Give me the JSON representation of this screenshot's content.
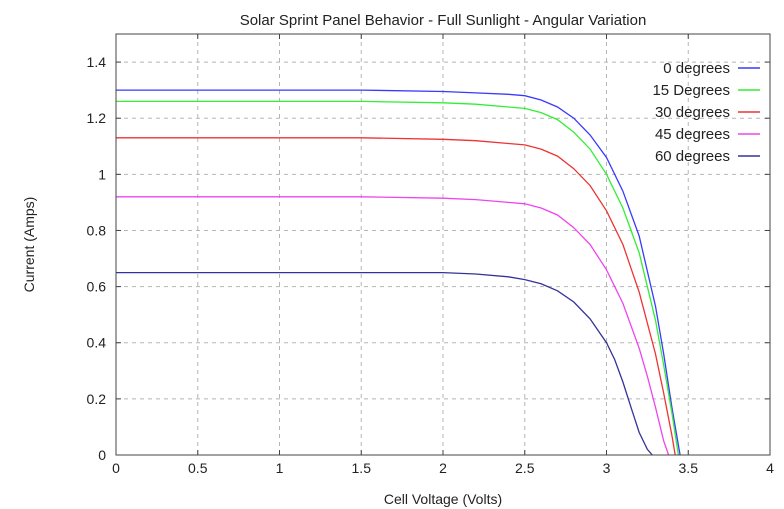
{
  "chart_data": {
    "type": "line",
    "title": "Solar Sprint Panel Behavior - Full Sunlight - Angular Variation",
    "xlabel": "Cell Voltage (Volts)",
    "ylabel": "Current (Amps)",
    "xlim": [
      0,
      4
    ],
    "ylim": [
      0,
      1.5
    ],
    "xticks": [
      0,
      0.5,
      1,
      1.5,
      2,
      2.5,
      3,
      3.5,
      4
    ],
    "xtick_labels": [
      "0",
      "0.5",
      "1",
      "1.5",
      "2",
      "2.5",
      "3",
      "3.5",
      "4"
    ],
    "yticks": [
      0,
      0.2,
      0.4,
      0.6,
      0.8,
      1,
      1.2,
      1.4
    ],
    "ytick_labels": [
      "0",
      "0.2",
      "0.4",
      "0.6",
      "0.8",
      "1",
      "1.2",
      "1.4"
    ],
    "grid": true,
    "legend_position": "top-right",
    "series": [
      {
        "name": "0 degrees",
        "color": "#3a3aff",
        "x": [
          0,
          1.0,
          1.5,
          2.0,
          2.2,
          2.4,
          2.5,
          2.6,
          2.7,
          2.8,
          2.9,
          3.0,
          3.1,
          3.2,
          3.3,
          3.35,
          3.4,
          3.45
        ],
        "y": [
          1.3,
          1.3,
          1.3,
          1.295,
          1.29,
          1.285,
          1.28,
          1.265,
          1.24,
          1.2,
          1.14,
          1.06,
          0.94,
          0.78,
          0.53,
          0.36,
          0.17,
          0.0
        ]
      },
      {
        "name": "15 Degrees",
        "color": "#33ee33",
        "x": [
          0,
          1.0,
          1.5,
          2.0,
          2.2,
          2.4,
          2.5,
          2.6,
          2.7,
          2.8,
          2.9,
          3.0,
          3.1,
          3.2,
          3.3,
          3.35,
          3.4,
          3.44
        ],
        "y": [
          1.26,
          1.26,
          1.26,
          1.255,
          1.25,
          1.24,
          1.235,
          1.22,
          1.195,
          1.15,
          1.09,
          1.0,
          0.88,
          0.72,
          0.48,
          0.32,
          0.15,
          0.0
        ]
      },
      {
        "name": "30 degrees",
        "color": "#ee3333",
        "x": [
          0,
          1.0,
          1.5,
          2.0,
          2.2,
          2.4,
          2.5,
          2.6,
          2.7,
          2.8,
          2.9,
          3.0,
          3.1,
          3.2,
          3.3,
          3.35,
          3.4,
          3.42
        ],
        "y": [
          1.13,
          1.13,
          1.13,
          1.125,
          1.12,
          1.11,
          1.105,
          1.09,
          1.065,
          1.02,
          0.96,
          0.87,
          0.75,
          0.58,
          0.36,
          0.22,
          0.07,
          0.0
        ]
      },
      {
        "name": "45 degrees",
        "color": "#ee44ee",
        "x": [
          0,
          1.0,
          1.5,
          2.0,
          2.2,
          2.4,
          2.5,
          2.6,
          2.7,
          2.8,
          2.9,
          3.0,
          3.1,
          3.2,
          3.25,
          3.3,
          3.35,
          3.38
        ],
        "y": [
          0.92,
          0.92,
          0.92,
          0.915,
          0.91,
          0.9,
          0.895,
          0.88,
          0.855,
          0.81,
          0.75,
          0.66,
          0.54,
          0.38,
          0.28,
          0.17,
          0.05,
          0.0
        ]
      },
      {
        "name": "60 degrees",
        "color": "#333399",
        "x": [
          0,
          1.0,
          1.5,
          2.0,
          2.2,
          2.4,
          2.5,
          2.6,
          2.7,
          2.8,
          2.9,
          3.0,
          3.05,
          3.1,
          3.15,
          3.2,
          3.25,
          3.28
        ],
        "y": [
          0.65,
          0.65,
          0.65,
          0.65,
          0.645,
          0.635,
          0.625,
          0.61,
          0.585,
          0.545,
          0.485,
          0.4,
          0.34,
          0.26,
          0.17,
          0.08,
          0.02,
          0.0
        ]
      }
    ]
  }
}
